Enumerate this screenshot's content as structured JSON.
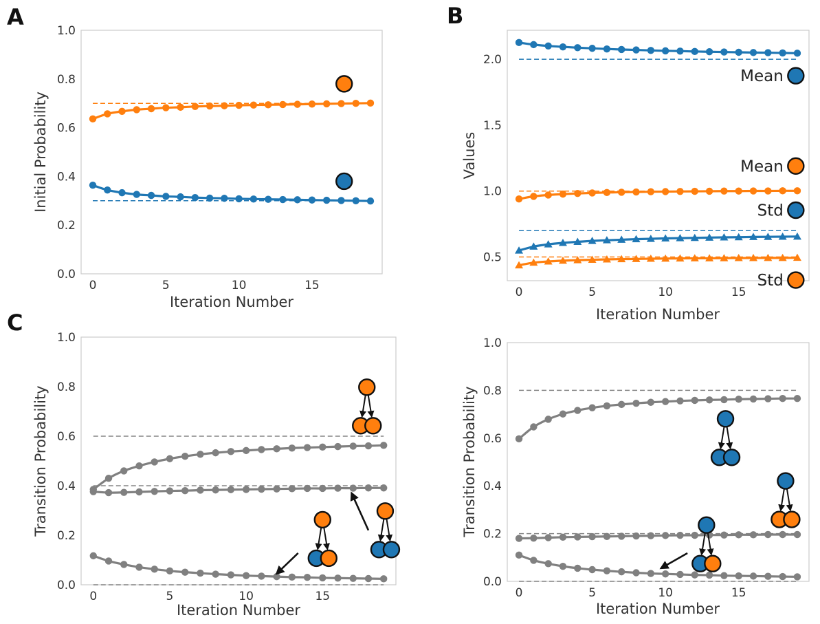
{
  "colors": {
    "blue": "#1f77b4",
    "orange": "#ff7f0e",
    "gray": "#808080",
    "node_edge": "#111111"
  },
  "panel_labels": [
    "A",
    "B",
    "C"
  ],
  "chart_data": [
    {
      "id": "A",
      "type": "line",
      "xlabel": "Iteration Number",
      "ylabel": "Initial Probability",
      "xlim": [
        -0.8,
        19.8
      ],
      "ylim": [
        0,
        1
      ],
      "xticks": [
        0,
        5,
        10,
        15
      ],
      "yticks": [
        0.0,
        0.2,
        0.4,
        0.6,
        0.8,
        1.0
      ],
      "ytick_labels": [
        "0.0",
        "0.2",
        "0.4",
        "0.6",
        "0.8",
        "1.0"
      ],
      "grid": false,
      "x": [
        0,
        1,
        2,
        3,
        4,
        5,
        6,
        7,
        8,
        9,
        10,
        11,
        12,
        13,
        14,
        15,
        16,
        17,
        18,
        19
      ],
      "series": [
        {
          "color": "orange",
          "marker": "circle",
          "values": [
            0.636,
            0.657,
            0.667,
            0.674,
            0.678,
            0.682,
            0.684,
            0.687,
            0.689,
            0.69,
            0.692,
            0.693,
            0.694,
            0.695,
            0.696,
            0.697,
            0.698,
            0.699,
            0.7,
            0.701
          ]
        },
        {
          "color": "blue",
          "marker": "circle",
          "values": [
            0.364,
            0.344,
            0.333,
            0.326,
            0.322,
            0.318,
            0.316,
            0.313,
            0.311,
            0.31,
            0.308,
            0.307,
            0.306,
            0.305,
            0.304,
            0.303,
            0.302,
            0.301,
            0.3,
            0.299
          ]
        }
      ],
      "reference_lines": [
        {
          "color": "orange",
          "y": 0.7
        },
        {
          "color": "blue",
          "y": 0.3
        }
      ],
      "legend_markers": [
        {
          "color": "orange",
          "label": "",
          "x": 17.2,
          "y": 0.78
        },
        {
          "color": "blue",
          "label": "",
          "x": 17.2,
          "y": 0.38
        }
      ]
    },
    {
      "id": "B",
      "type": "line",
      "xlabel": "Iteration Number",
      "ylabel": "Values",
      "xlim": [
        -0.8,
        19.8
      ],
      "ylim": [
        0.32,
        2.22
      ],
      "xticks": [
        0,
        5,
        10,
        15
      ],
      "yticks": [
        0.5,
        1.0,
        1.5,
        2.0
      ],
      "ytick_labels": [
        "0.5",
        "1.0",
        "1.5",
        "2.0"
      ],
      "grid": false,
      "x": [
        0,
        1,
        2,
        3,
        4,
        5,
        6,
        7,
        8,
        9,
        10,
        11,
        12,
        13,
        14,
        15,
        16,
        17,
        18,
        19
      ],
      "series": [
        {
          "color": "blue",
          "marker": "circle",
          "values": [
            2.127,
            2.111,
            2.101,
            2.094,
            2.088,
            2.083,
            2.078,
            2.074,
            2.071,
            2.067,
            2.064,
            2.062,
            2.059,
            2.057,
            2.055,
            2.053,
            2.051,
            2.05,
            2.048,
            2.046
          ]
        },
        {
          "color": "orange",
          "marker": "circle",
          "values": [
            0.94,
            0.96,
            0.97,
            0.977,
            0.982,
            0.986,
            0.989,
            0.991,
            0.993,
            0.995,
            0.996,
            0.997,
            0.998,
            0.999,
            1.0,
            1.0,
            1.001,
            1.001,
            1.002,
            1.002
          ]
        },
        {
          "color": "blue",
          "marker": "triangle",
          "values": [
            0.549,
            0.579,
            0.596,
            0.607,
            0.615,
            0.622,
            0.627,
            0.631,
            0.635,
            0.638,
            0.641,
            0.643,
            0.645,
            0.647,
            0.649,
            0.65,
            0.652,
            0.653,
            0.654,
            0.655
          ]
        },
        {
          "color": "orange",
          "marker": "triangle",
          "values": [
            0.437,
            0.457,
            0.466,
            0.472,
            0.476,
            0.479,
            0.482,
            0.484,
            0.485,
            0.487,
            0.488,
            0.489,
            0.49,
            0.49,
            0.491,
            0.492,
            0.492,
            0.493,
            0.493,
            0.494
          ]
        }
      ],
      "reference_lines": [
        {
          "color": "blue",
          "y": 2.0
        },
        {
          "color": "orange",
          "y": 1.0
        },
        {
          "color": "blue",
          "y": 0.7
        },
        {
          "color": "orange",
          "y": 0.5
        }
      ],
      "legend_markers": [
        {
          "color": "blue",
          "label": "Mean",
          "x": 18.9,
          "y": 1.875
        },
        {
          "color": "orange",
          "label": "Mean",
          "x": 18.9,
          "y": 1.19
        },
        {
          "color": "blue",
          "label": "Std",
          "x": 18.9,
          "y": 0.855
        },
        {
          "color": "orange",
          "label": "Std",
          "x": 18.9,
          "y": 0.325
        }
      ]
    },
    {
      "id": "C-left",
      "type": "line",
      "xlabel": "Iteration Number",
      "ylabel": "Transition Probability",
      "xlim": [
        -0.8,
        19.8
      ],
      "ylim": [
        0,
        1
      ],
      "xticks": [
        0,
        5,
        10,
        15
      ],
      "yticks": [
        0.0,
        0.2,
        0.4,
        0.6,
        0.8,
        1.0
      ],
      "ytick_labels": [
        "0.0",
        "0.2",
        "0.4",
        "0.6",
        "0.8",
        "1.0"
      ],
      "grid": false,
      "x": [
        0,
        1,
        2,
        3,
        4,
        5,
        6,
        7,
        8,
        9,
        10,
        11,
        12,
        13,
        14,
        15,
        16,
        17,
        18,
        19
      ],
      "series": [
        {
          "color": "gray",
          "marker": "circle",
          "values": [
            0.385,
            0.43,
            0.46,
            0.48,
            0.496,
            0.509,
            0.519,
            0.527,
            0.533,
            0.538,
            0.542,
            0.546,
            0.549,
            0.552,
            0.554,
            0.556,
            0.558,
            0.56,
            0.561,
            0.563
          ]
        },
        {
          "color": "gray",
          "marker": "circle",
          "values": [
            0.376,
            0.372,
            0.373,
            0.375,
            0.377,
            0.379,
            0.38,
            0.382,
            0.383,
            0.384,
            0.385,
            0.386,
            0.387,
            0.388,
            0.389,
            0.389,
            0.39,
            0.39,
            0.391,
            0.391
          ]
        },
        {
          "color": "gray",
          "marker": "circle",
          "values": [
            0.117,
            0.096,
            0.082,
            0.071,
            0.063,
            0.056,
            0.051,
            0.047,
            0.043,
            0.04,
            0.037,
            0.035,
            0.033,
            0.031,
            0.03,
            0.028,
            0.027,
            0.026,
            0.025,
            0.024
          ]
        }
      ],
      "reference_lines": [
        {
          "color": "gray",
          "y": 0.6
        },
        {
          "color": "gray",
          "y": 0.4
        },
        {
          "color": "gray",
          "y": 0.0
        }
      ]
    },
    {
      "id": "C-right",
      "type": "line",
      "xlabel": "Iteration Number",
      "ylabel": "Transition Probability",
      "xlim": [
        -0.8,
        19.8
      ],
      "ylim": [
        0,
        1
      ],
      "xticks": [
        0,
        5,
        10,
        15
      ],
      "yticks": [
        0.0,
        0.2,
        0.4,
        0.6,
        0.8,
        1.0
      ],
      "ytick_labels": [
        "0.0",
        "0.2",
        "0.4",
        "0.6",
        "0.8",
        "1.0"
      ],
      "grid": false,
      "x": [
        0,
        1,
        2,
        3,
        4,
        5,
        6,
        7,
        8,
        9,
        10,
        11,
        12,
        13,
        14,
        15,
        16,
        17,
        18,
        19
      ],
      "series": [
        {
          "color": "gray",
          "marker": "circle",
          "values": [
            0.597,
            0.647,
            0.679,
            0.701,
            0.716,
            0.727,
            0.735,
            0.741,
            0.746,
            0.75,
            0.753,
            0.756,
            0.758,
            0.76,
            0.761,
            0.763,
            0.764,
            0.765,
            0.766,
            0.766
          ]
        },
        {
          "color": "gray",
          "marker": "circle",
          "values": [
            0.18,
            0.181,
            0.183,
            0.185,
            0.186,
            0.187,
            0.188,
            0.189,
            0.19,
            0.191,
            0.192,
            0.193,
            0.193,
            0.194,
            0.194,
            0.195,
            0.195,
            0.196,
            0.196,
            0.196
          ]
        },
        {
          "color": "gray",
          "marker": "circle",
          "values": [
            0.11,
            0.088,
            0.074,
            0.063,
            0.055,
            0.049,
            0.044,
            0.04,
            0.036,
            0.033,
            0.031,
            0.029,
            0.027,
            0.026,
            0.024,
            0.023,
            0.022,
            0.021,
            0.02,
            0.019
          ]
        }
      ],
      "reference_lines": [
        {
          "color": "gray",
          "y": 0.8
        },
        {
          "color": "gray",
          "y": 0.2
        },
        {
          "color": "gray",
          "y": 0.0
        }
      ]
    }
  ],
  "transition_icons": [
    {
      "panel": "C-left",
      "parent": "orange",
      "children": [
        "orange",
        "orange"
      ],
      "x": 17.9,
      "y": 0.72
    },
    {
      "panel": "C-left",
      "parent": "orange",
      "children": [
        "blue",
        "orange"
      ],
      "x": 15.0,
      "y": 0.185
    },
    {
      "panel": "C-left",
      "parent": "orange",
      "children": [
        "blue",
        "blue"
      ],
      "x": 19.1,
      "y": 0.22
    },
    {
      "panel": "C-right",
      "parent": "blue",
      "children": [
        "blue",
        "blue"
      ],
      "x": 14.1,
      "y": 0.6
    },
    {
      "panel": "C-right",
      "parent": "blue",
      "children": [
        "orange",
        "orange"
      ],
      "x": 18.2,
      "y": 0.34
    },
    {
      "panel": "C-right",
      "parent": "blue",
      "children": [
        "blue",
        "orange"
      ],
      "x": 12.8,
      "y": 0.155
    }
  ],
  "arrows": [
    {
      "panel": "C-left",
      "from": [
        13.4,
        0.128
      ],
      "to": [
        12.0,
        0.045
      ]
    },
    {
      "panel": "C-left",
      "from": [
        18.0,
        0.22
      ],
      "to": [
        16.9,
        0.37
      ]
    },
    {
      "panel": "C-right",
      "from": [
        11.5,
        0.118
      ],
      "to": [
        9.7,
        0.055
      ]
    }
  ]
}
